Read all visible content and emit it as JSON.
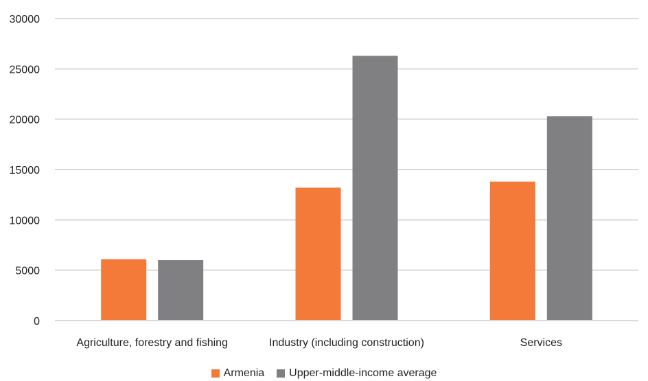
{
  "chart_data": {
    "type": "bar",
    "categories": [
      "Agriculture, forestry and fishing",
      "Industry (including construction)",
      "Services"
    ],
    "series": [
      {
        "name": "Armenia",
        "color": "#f47a3a",
        "values": [
          6100,
          13200,
          13800
        ]
      },
      {
        "name": "Upper-middle-income average",
        "color": "#808083",
        "values": [
          6000,
          26300,
          20300
        ]
      }
    ],
    "yticks": [
      "0",
      "5000",
      "10000",
      "15000",
      "20000",
      "25000",
      "30000"
    ],
    "ylim": [
      0,
      30000
    ],
    "grid": true,
    "legend_position": "bottom"
  }
}
